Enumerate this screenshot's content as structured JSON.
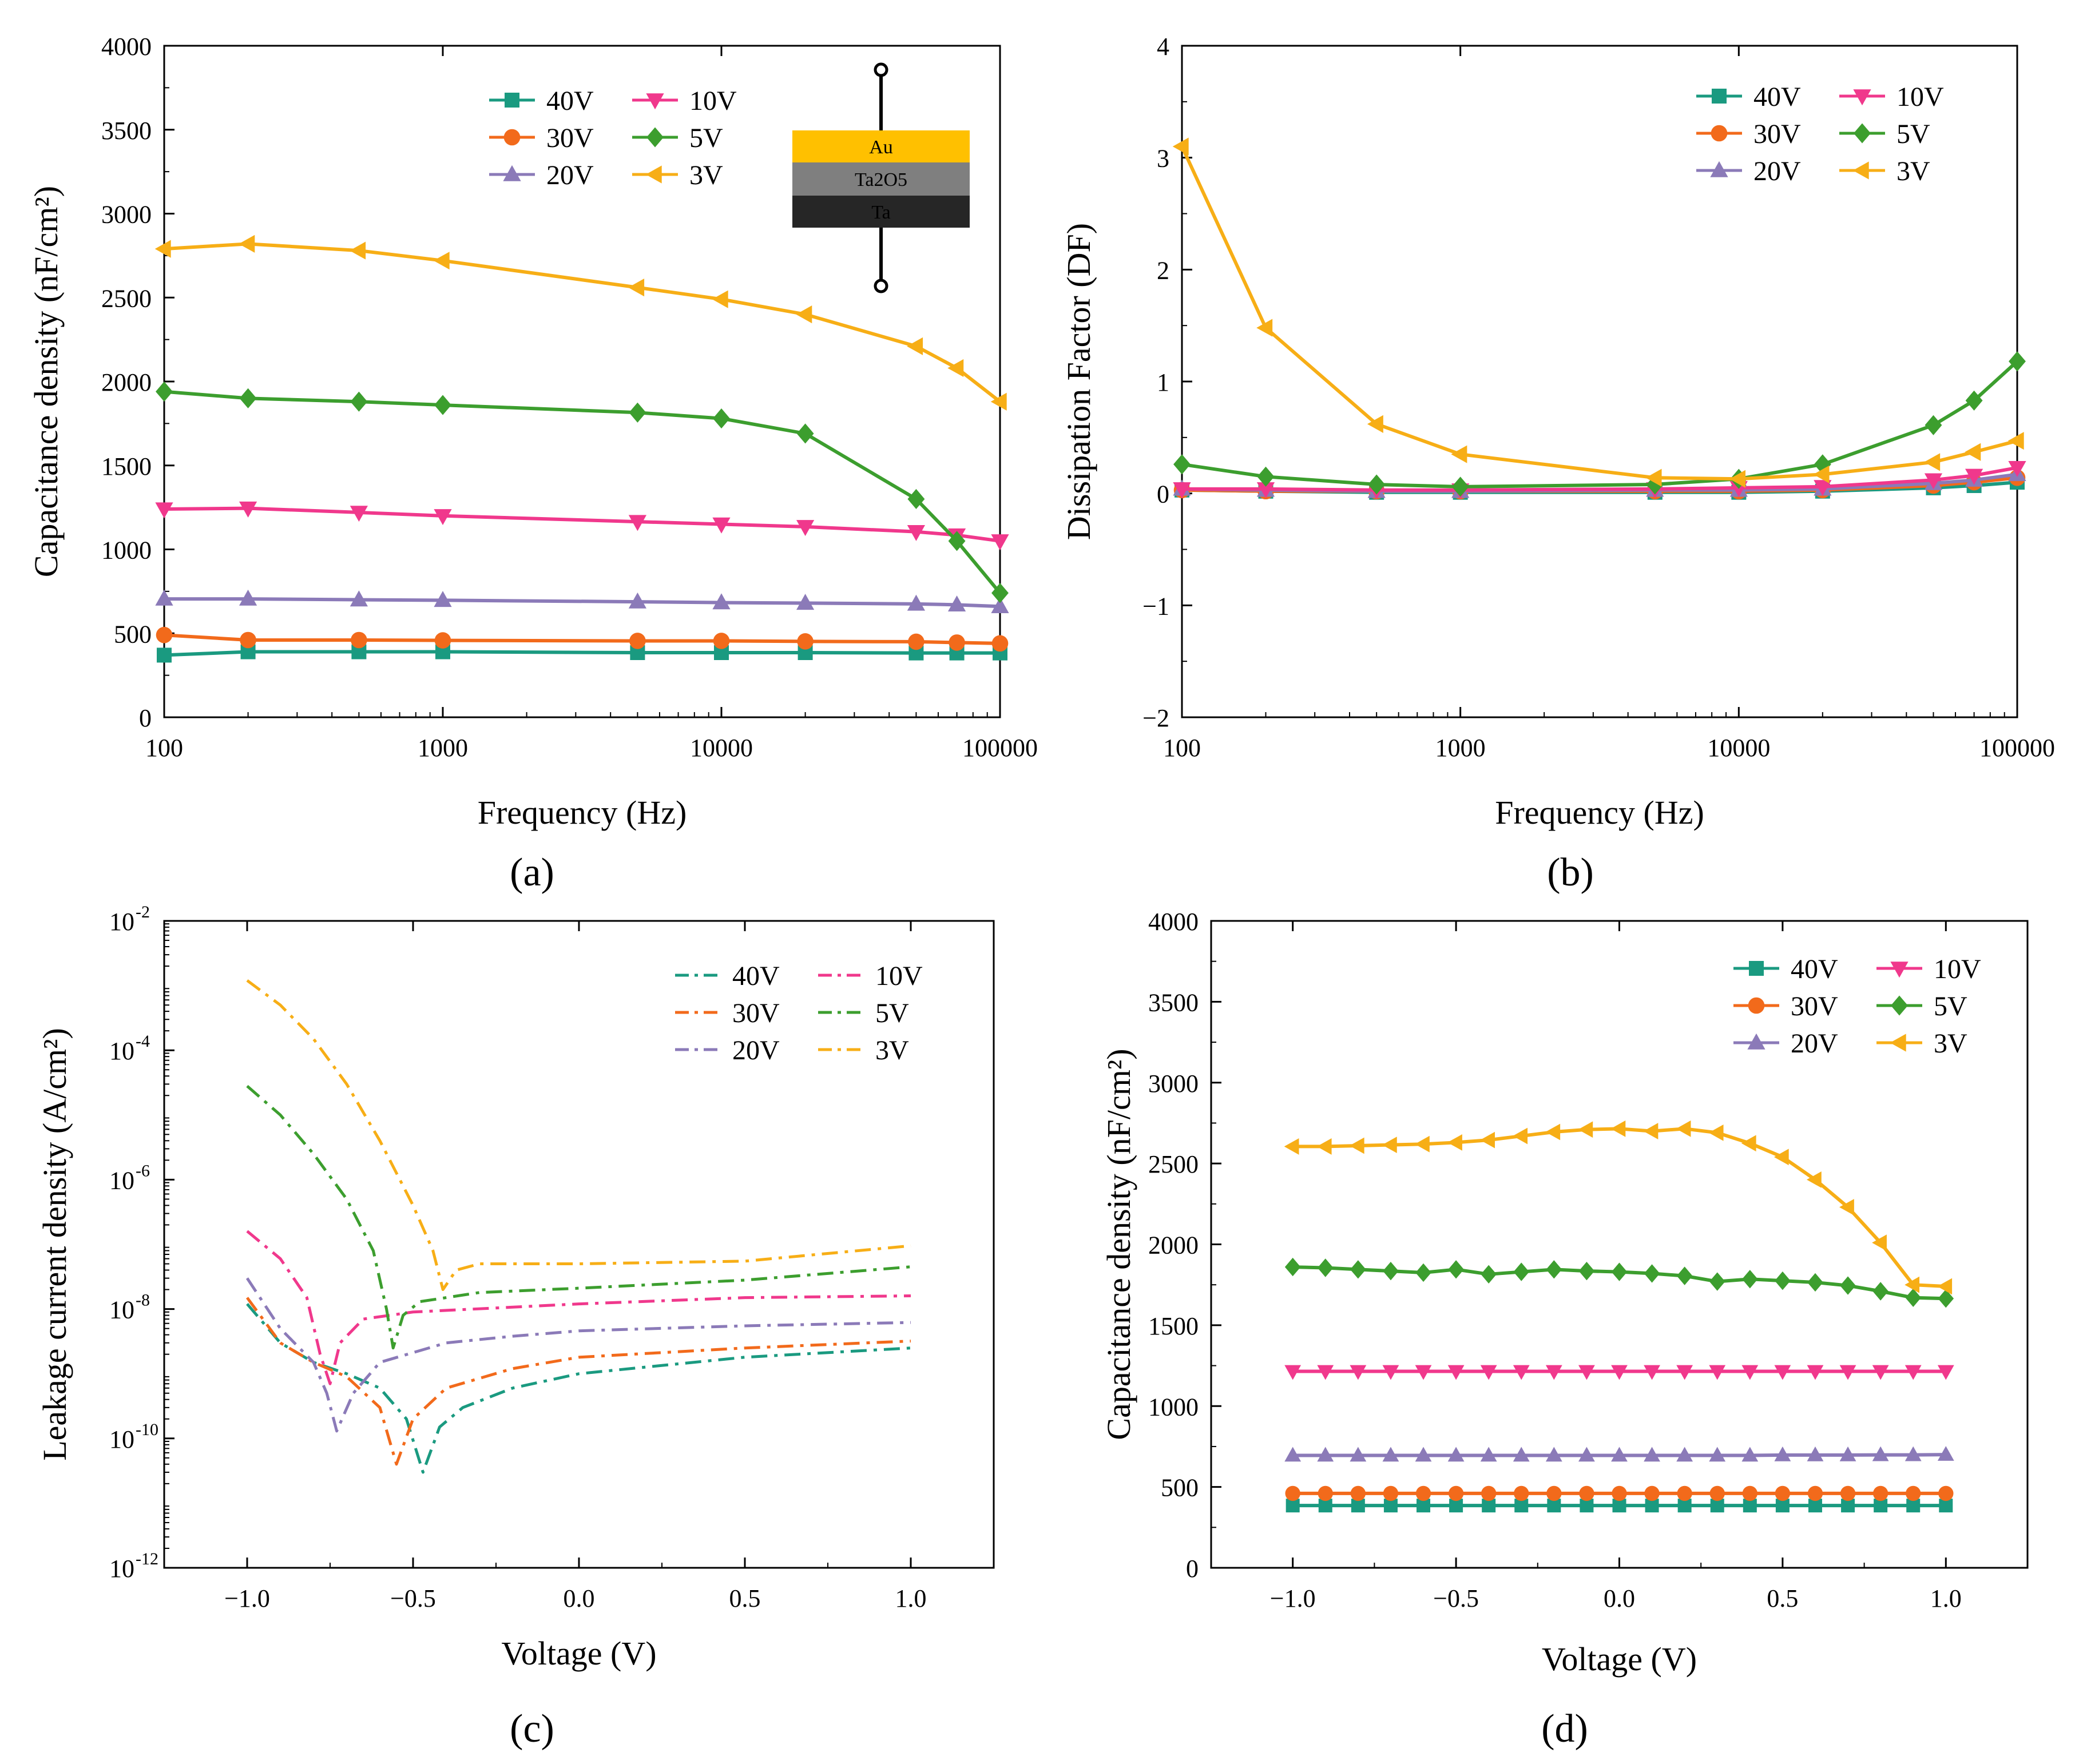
{
  "colors": {
    "40V": "#1a9a80",
    "30V": "#f26a1b",
    "20V": "#8b7ab8",
    "10V": "#f0388c",
    "5V": "#3c9e2e",
    "3V": "#f7ae16"
  },
  "inset": {
    "layers": [
      "Au",
      "Ta2O5",
      "Ta"
    ],
    "colors": [
      "#ffc000",
      "#7f7f7f",
      "#262626"
    ]
  },
  "chart_data": [
    {
      "id": "a",
      "type": "line",
      "caption": "(a)",
      "xlabel": "Frequency (Hz)",
      "ylabel": "Capacitance density (nF/cm²)",
      "xscale": "log",
      "xlim": [
        100,
        100000
      ],
      "ylim": [
        0,
        4000
      ],
      "xticks": [
        "100",
        "1000",
        "10000",
        "100000"
      ],
      "yticks": [
        "0",
        "500",
        "1000",
        "1500",
        "2000",
        "2500",
        "3000",
        "3500",
        "4000"
      ],
      "x": [
        100,
        200,
        500,
        1000,
        5000,
        10000,
        20000,
        50000,
        70000,
        100000
      ],
      "legend": [
        "40V",
        "10V",
        "30V",
        "5V",
        "20V",
        "3V"
      ],
      "series": [
        {
          "name": "40V",
          "marker": "square",
          "values": [
            370,
            390,
            390,
            390,
            385,
            385,
            385,
            383,
            383,
            383
          ]
        },
        {
          "name": "30V",
          "marker": "circle",
          "values": [
            490,
            460,
            460,
            458,
            455,
            455,
            452,
            450,
            445,
            440
          ]
        },
        {
          "name": "20V",
          "marker": "triangle-up",
          "values": [
            705,
            705,
            700,
            697,
            688,
            683,
            680,
            675,
            670,
            660
          ]
        },
        {
          "name": "10V",
          "marker": "triangle-down",
          "values": [
            1240,
            1245,
            1220,
            1200,
            1165,
            1150,
            1135,
            1105,
            1085,
            1050
          ]
        },
        {
          "name": "5V",
          "marker": "diamond",
          "values": [
            1940,
            1900,
            1880,
            1860,
            1815,
            1780,
            1690,
            1300,
            1050,
            740
          ]
        },
        {
          "name": "3V",
          "marker": "triangle-left",
          "values": [
            2790,
            2820,
            2780,
            2720,
            2560,
            2490,
            2400,
            2210,
            2080,
            1880
          ]
        }
      ]
    },
    {
      "id": "b",
      "type": "line",
      "caption": "(b)",
      "xlabel": "Frequency (Hz)",
      "ylabel": "Dissipation Factor (DF)",
      "xscale": "log",
      "xlim": [
        100,
        100000
      ],
      "ylim": [
        -2,
        4
      ],
      "xticks": [
        "100",
        "1000",
        "10000",
        "100000"
      ],
      "yticks": [
        "−2",
        "−1",
        "0",
        "1",
        "2",
        "3",
        "4"
      ],
      "x": [
        100,
        200,
        500,
        1000,
        5000,
        10000,
        20000,
        50000,
        70000,
        100000
      ],
      "legend": [
        "40V",
        "10V",
        "30V",
        "5V",
        "20V",
        "3V"
      ],
      "series": [
        {
          "name": "40V",
          "marker": "square",
          "values": [
            0.03,
            0.02,
            0.01,
            0.01,
            0.01,
            0.01,
            0.02,
            0.05,
            0.07,
            0.1
          ]
        },
        {
          "name": "30V",
          "marker": "circle",
          "values": [
            0.03,
            0.02,
            0.02,
            0.02,
            0.02,
            0.02,
            0.03,
            0.07,
            0.1,
            0.14
          ]
        },
        {
          "name": "20V",
          "marker": "triangle-up",
          "values": [
            0.04,
            0.03,
            0.02,
            0.02,
            0.03,
            0.03,
            0.04,
            0.09,
            0.12,
            0.17
          ]
        },
        {
          "name": "10V",
          "marker": "triangle-down",
          "values": [
            0.04,
            0.04,
            0.03,
            0.03,
            0.04,
            0.05,
            0.06,
            0.12,
            0.16,
            0.23
          ]
        },
        {
          "name": "5V",
          "marker": "diamond",
          "values": [
            0.26,
            0.15,
            0.08,
            0.06,
            0.08,
            0.13,
            0.26,
            0.61,
            0.83,
            1.18
          ]
        },
        {
          "name": "3V",
          "marker": "triangle-left",
          "values": [
            3.1,
            1.48,
            0.62,
            0.35,
            0.14,
            0.13,
            0.17,
            0.28,
            0.37,
            0.47
          ]
        }
      ]
    },
    {
      "id": "c",
      "type": "line",
      "caption": "(c)",
      "xlabel": "Voltage (V)",
      "ylabel": "Leakage current density (A/cm²)",
      "xscale": "linear",
      "yscale": "log",
      "xlim": [
        -1.25,
        1.25
      ],
      "ylim": [
        1e-12,
        0.01
      ],
      "xticks": [
        "−1.0",
        "−0.5",
        "0.0",
        "0.5",
        "1.0"
      ],
      "yticks": [
        "10",
        "10",
        "10",
        "10",
        "10",
        "10"
      ],
      "ytick_exponents": [
        "-12",
        "-10",
        "-8",
        "-6",
        "-4",
        "-2"
      ],
      "linestyle": "dash-dot",
      "legend": [
        "40V",
        "10V",
        "30V",
        "5V",
        "20V",
        "3V"
      ],
      "series": [
        {
          "name": "40V",
          "points": [
            [
              -1.0,
              1.2e-08
            ],
            [
              -0.9,
              3e-09
            ],
            [
              -0.8,
              1.5e-09
            ],
            [
              -0.7,
              1e-09
            ],
            [
              -0.6,
              6e-10
            ],
            [
              -0.52,
              2e-10
            ],
            [
              -0.47,
              3e-11
            ],
            [
              -0.42,
              1.5e-10
            ],
            [
              -0.35,
              3e-10
            ],
            [
              -0.2,
              6e-10
            ],
            [
              0.0,
              1e-09
            ],
            [
              0.5,
              1.8e-09
            ],
            [
              1.0,
              2.5e-09
            ]
          ]
        },
        {
          "name": "30V",
          "points": [
            [
              -1.0,
              1.5e-08
            ],
            [
              -0.9,
              3e-09
            ],
            [
              -0.8,
              1.5e-09
            ],
            [
              -0.7,
              9e-10
            ],
            [
              -0.6,
              3e-10
            ],
            [
              -0.55,
              4e-11
            ],
            [
              -0.5,
              2e-10
            ],
            [
              -0.4,
              6e-10
            ],
            [
              -0.2,
              1.2e-09
            ],
            [
              0.0,
              1.8e-09
            ],
            [
              0.5,
              2.5e-09
            ],
            [
              1.0,
              3.2e-09
            ]
          ]
        },
        {
          "name": "20V",
          "points": [
            [
              -1.0,
              3e-08
            ],
            [
              -0.9,
              5e-09
            ],
            [
              -0.8,
              1.5e-09
            ],
            [
              -0.76,
              5e-10
            ],
            [
              -0.73,
              1.3e-10
            ],
            [
              -0.68,
              5e-10
            ],
            [
              -0.6,
              1.5e-09
            ],
            [
              -0.4,
              3e-09
            ],
            [
              -0.2,
              3.8e-09
            ],
            [
              0.0,
              4.6e-09
            ],
            [
              0.5,
              5.5e-09
            ],
            [
              1.0,
              6.2e-09
            ]
          ]
        },
        {
          "name": "10V",
          "points": [
            [
              -1.0,
              1.6e-07
            ],
            [
              -0.9,
              6e-08
            ],
            [
              -0.82,
              1.5e-08
            ],
            [
              -0.78,
              2e-09
            ],
            [
              -0.75,
              7e-10
            ],
            [
              -0.72,
              3e-09
            ],
            [
              -0.65,
              7e-09
            ],
            [
              -0.5,
              9e-09
            ],
            [
              0.0,
              1.2e-08
            ],
            [
              0.5,
              1.5e-08
            ],
            [
              1.0,
              1.6e-08
            ]
          ]
        },
        {
          "name": "5V",
          "points": [
            [
              -1.0,
              2.8e-05
            ],
            [
              -0.9,
              1e-05
            ],
            [
              -0.8,
              2.5e-06
            ],
            [
              -0.7,
              5e-07
            ],
            [
              -0.62,
              8e-08
            ],
            [
              -0.58,
              1e-08
            ],
            [
              -0.56,
              2.5e-09
            ],
            [
              -0.53,
              8e-09
            ],
            [
              -0.48,
              1.3e-08
            ],
            [
              -0.3,
              1.8e-08
            ],
            [
              0.0,
              2.1e-08
            ],
            [
              0.5,
              2.8e-08
            ],
            [
              1.0,
              4.5e-08
            ]
          ]
        },
        {
          "name": "3V",
          "points": [
            [
              -1.0,
              0.0012
            ],
            [
              -0.9,
              0.0005
            ],
            [
              -0.8,
              0.00015
            ],
            [
              -0.7,
              3e-05
            ],
            [
              -0.6,
              4e-06
            ],
            [
              -0.5,
              4e-07
            ],
            [
              -0.44,
              8e-08
            ],
            [
              -0.41,
              2e-08
            ],
            [
              -0.37,
              4e-08
            ],
            [
              -0.3,
              5e-08
            ],
            [
              0.0,
              5e-08
            ],
            [
              0.5,
              5.5e-08
            ],
            [
              1.0,
              9.5e-08
            ]
          ]
        }
      ]
    },
    {
      "id": "d",
      "type": "line",
      "caption": "(d)",
      "xlabel": "Voltage (V)",
      "ylabel": "Capacitance density (nF/cm²)",
      "xscale": "linear",
      "xlim": [
        -1.25,
        1.25
      ],
      "ylim": [
        0,
        4000
      ],
      "xticks": [
        "−1.0",
        "−0.5",
        "0.0",
        "0.5",
        "1.0"
      ],
      "yticks": [
        "0",
        "500",
        "1000",
        "1500",
        "2000",
        "2500",
        "3000",
        "3500",
        "4000"
      ],
      "x": [
        -1.0,
        -0.9,
        -0.8,
        -0.7,
        -0.6,
        -0.5,
        -0.4,
        -0.3,
        -0.2,
        -0.1,
        0.0,
        0.1,
        0.2,
        0.3,
        0.4,
        0.5,
        0.6,
        0.7,
        0.8,
        0.9,
        1.0
      ],
      "legend": [
        "40V",
        "10V",
        "30V",
        "5V",
        "20V",
        "3V"
      ],
      "series": [
        {
          "name": "40V",
          "marker": "square",
          "values": [
            385,
            385,
            385,
            385,
            385,
            385,
            385,
            385,
            385,
            385,
            385,
            385,
            385,
            385,
            385,
            385,
            385,
            385,
            385,
            385,
            385
          ]
        },
        {
          "name": "30V",
          "marker": "circle",
          "values": [
            460,
            460,
            460,
            460,
            460,
            460,
            460,
            460,
            460,
            460,
            460,
            460,
            460,
            460,
            460,
            460,
            460,
            460,
            460,
            460,
            460
          ]
        },
        {
          "name": "20V",
          "marker": "triangle-up",
          "values": [
            695,
            695,
            695,
            695,
            695,
            695,
            695,
            695,
            695,
            695,
            695,
            695,
            695,
            695,
            695,
            697,
            697,
            697,
            698,
            698,
            700
          ]
        },
        {
          "name": "10V",
          "marker": "triangle-down",
          "values": [
            1215,
            1215,
            1215,
            1215,
            1215,
            1215,
            1215,
            1215,
            1215,
            1215,
            1215,
            1215,
            1215,
            1215,
            1215,
            1215,
            1215,
            1215,
            1215,
            1215,
            1215
          ]
        },
        {
          "name": "5V",
          "marker": "diamond",
          "values": [
            1860,
            1855,
            1845,
            1835,
            1825,
            1845,
            1815,
            1830,
            1845,
            1835,
            1830,
            1820,
            1805,
            1770,
            1785,
            1775,
            1765,
            1745,
            1710,
            1670,
            1665
          ]
        },
        {
          "name": "3V",
          "marker": "triangle-left",
          "values": [
            2605,
            2605,
            2610,
            2615,
            2620,
            2630,
            2645,
            2670,
            2695,
            2710,
            2715,
            2700,
            2715,
            2690,
            2625,
            2540,
            2400,
            2230,
            2010,
            1750,
            1740
          ]
        }
      ]
    }
  ]
}
